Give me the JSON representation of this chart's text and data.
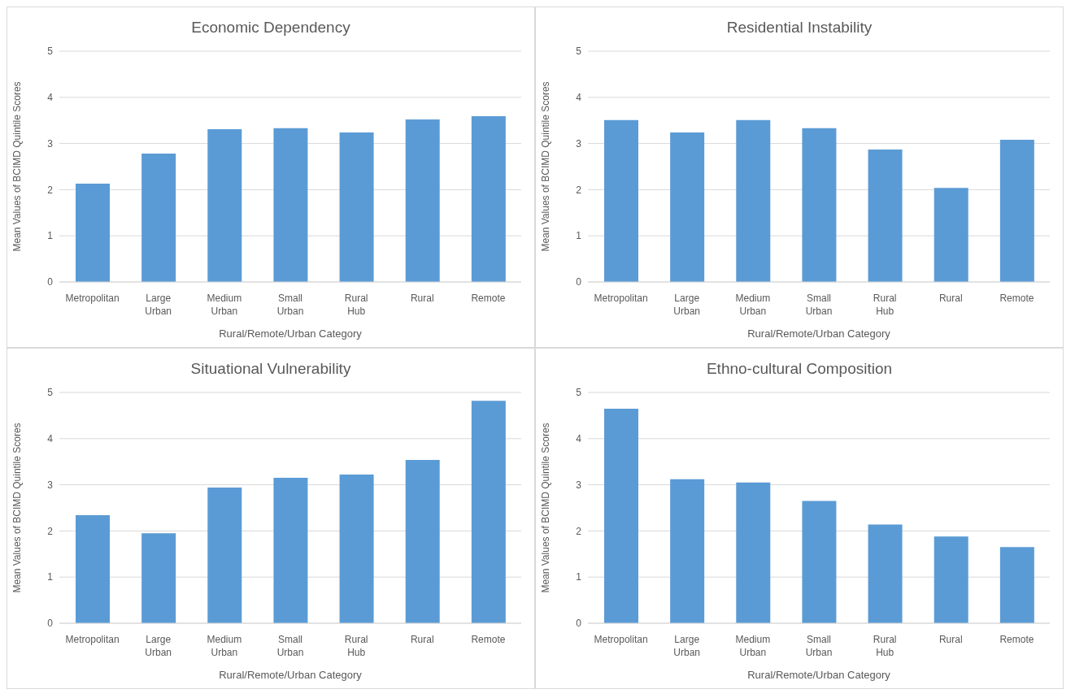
{
  "chart_data": [
    {
      "type": "bar",
      "title": "Economic Dependency",
      "xlabel": "Rural/Remote/Urban Category",
      "ylabel": "Mean Values of BCIMD Quintile Scores",
      "categories": [
        "Metropolitan",
        "Large Urban",
        "Medium Urban",
        "Small Urban",
        "Rural Hub",
        "Rural",
        "Remote"
      ],
      "values": [
        2.13,
        2.78,
        3.31,
        3.33,
        3.24,
        3.52,
        3.59
      ],
      "color": "#5b9bd5",
      "ylim": [
        0,
        5
      ],
      "yticks": [
        0,
        1,
        2,
        3,
        4,
        5
      ],
      "grid": "y"
    },
    {
      "type": "bar",
      "title": "Residential Instability",
      "xlabel": "Rural/Remote/Urban Category",
      "ylabel": "Mean Values of BCIMD Quintile Scores",
      "categories": [
        "Metropolitan",
        "Large Urban",
        "Medium Urban",
        "Small Urban",
        "Rural Hub",
        "Rural",
        "Remote"
      ],
      "values": [
        3.51,
        3.24,
        3.51,
        3.33,
        2.87,
        2.04,
        3.08
      ],
      "color": "#5b9bd5",
      "ylim": [
        0,
        5
      ],
      "yticks": [
        0,
        1,
        2,
        3,
        4,
        5
      ],
      "grid": "y"
    },
    {
      "type": "bar",
      "title": "Situational Vulnerability",
      "xlabel": "Rural/Remote/Urban Category",
      "ylabel": "Mean Values of BCIMD Quintile Scores",
      "categories": [
        "Metropolitan",
        "Large Urban",
        "Medium Urban",
        "Small Urban",
        "Rural Hub",
        "Rural",
        "Remote"
      ],
      "values": [
        2.34,
        1.95,
        2.94,
        3.15,
        3.22,
        3.54,
        4.82
      ],
      "color": "#5b9bd5",
      "ylim": [
        0,
        5
      ],
      "yticks": [
        0,
        1,
        2,
        3,
        4,
        5
      ],
      "grid": "y"
    },
    {
      "type": "bar",
      "title": "Ethno-cultural Composition",
      "xlabel": "Rural/Remote/Urban Category",
      "ylabel": "Mean Values of BCIMD Quintile Scores",
      "categories": [
        "Metropolitan",
        "Large Urban",
        "Medium Urban",
        "Small Urban",
        "Rural Hub",
        "Rural",
        "Remote"
      ],
      "values": [
        4.65,
        3.12,
        3.05,
        2.65,
        2.14,
        1.88,
        1.65
      ],
      "color": "#5b9bd5",
      "ylim": [
        0,
        5
      ],
      "yticks": [
        0,
        1,
        2,
        3,
        4,
        5
      ],
      "grid": "y"
    }
  ]
}
